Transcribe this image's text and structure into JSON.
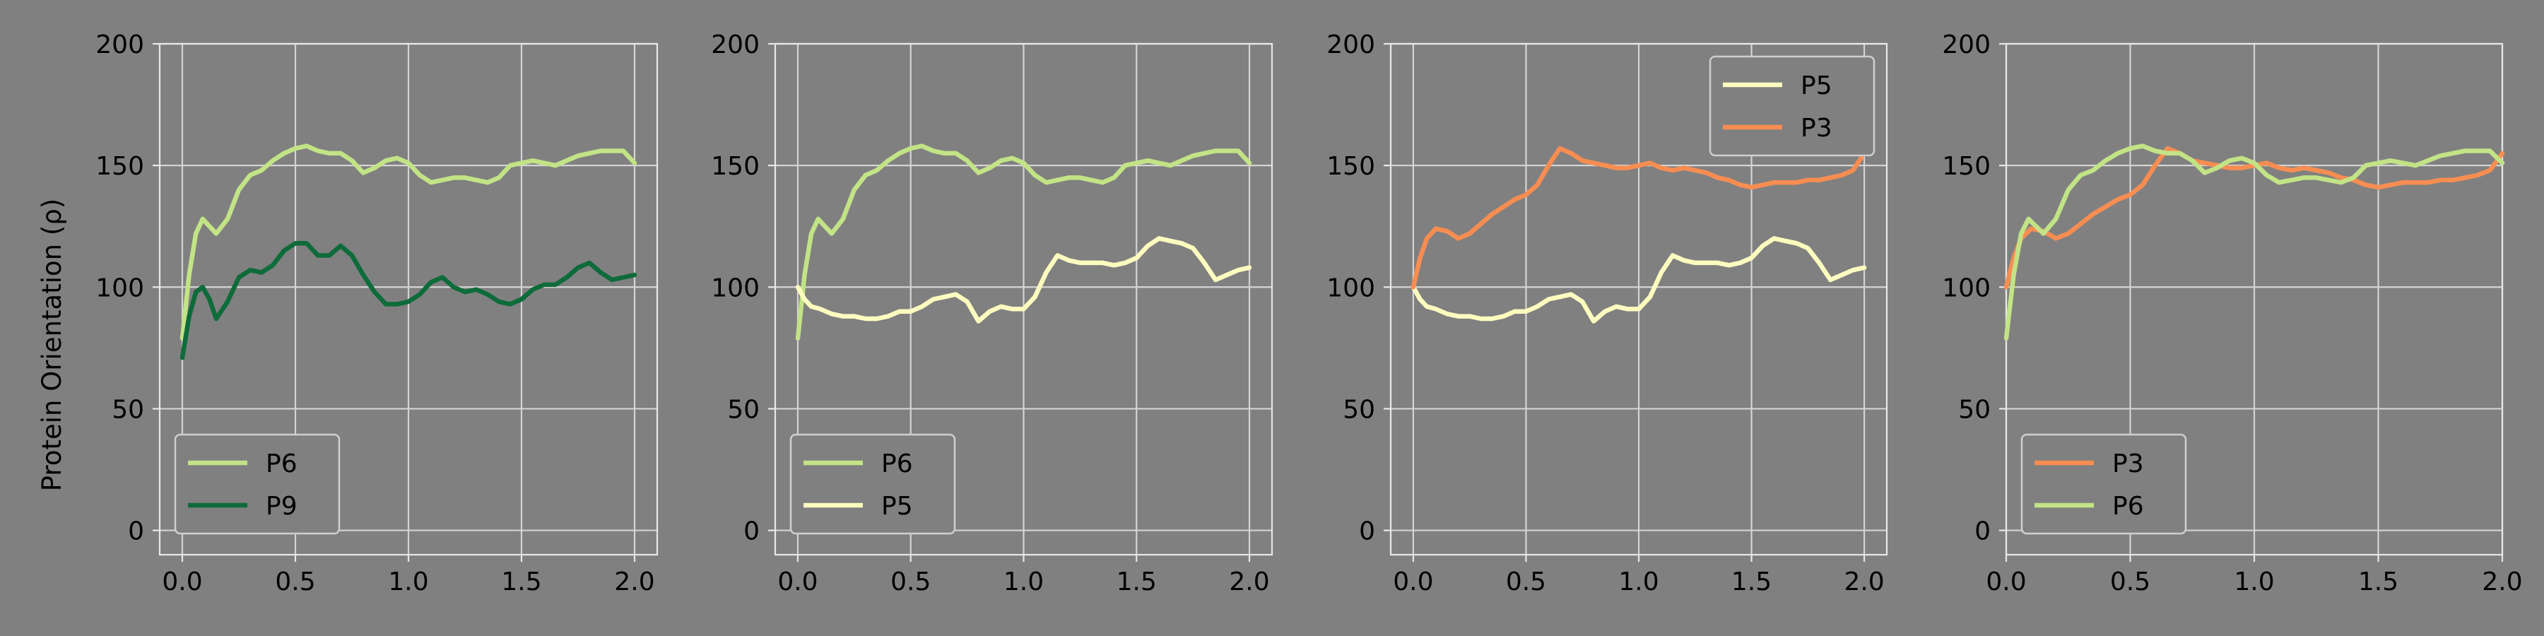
{
  "figure": {
    "ylabel": "Protein Orientation (ρ)",
    "colors": {
      "background": "#808080",
      "grid": "#d4d4d4",
      "axis": "#e8e8e8",
      "text": "#000000",
      "legend_face": "#808080",
      "legend_edge": "#cfcfcf"
    }
  },
  "chart_data": [
    {
      "type": "line",
      "xlim": [
        -0.1,
        2.1
      ],
      "ylim": [
        -10,
        200
      ],
      "xticks": [
        0.0,
        0.5,
        1.0,
        1.5,
        2.0
      ],
      "xtick_labels": [
        "0.0",
        "0.5",
        "1.0",
        "1.5",
        "2.0"
      ],
      "yticks": [
        0,
        50,
        100,
        150,
        200
      ],
      "ytick_labels": [
        "0",
        "50",
        "100",
        "150",
        "200"
      ],
      "grid": true,
      "legend": "lower-left",
      "series": [
        {
          "name": "P6",
          "color": "#c2e386",
          "x": [
            0,
            0.03,
            0.06,
            0.09,
            0.12,
            0.15,
            0.2,
            0.25,
            0.3,
            0.35,
            0.4,
            0.45,
            0.5,
            0.55,
            0.6,
            0.65,
            0.7,
            0.75,
            0.8,
            0.85,
            0.9,
            0.95,
            1.0,
            1.05,
            1.1,
            1.15,
            1.2,
            1.25,
            1.3,
            1.35,
            1.4,
            1.45,
            1.5,
            1.55,
            1.6,
            1.65,
            1.7,
            1.75,
            1.8,
            1.85,
            1.9,
            1.95,
            2.0
          ],
          "y": [
            79,
            105,
            122,
            128,
            125,
            122,
            128,
            140,
            146,
            148,
            152,
            155,
            157,
            158,
            156,
            155,
            155,
            152,
            147,
            149,
            152,
            153,
            151,
            146,
            143,
            144,
            145,
            145,
            144,
            143,
            145,
            150,
            151,
            152,
            151,
            150,
            152,
            154,
            155,
            156,
            156,
            156,
            151
          ]
        },
        {
          "name": "P9",
          "color": "#0e6b3a",
          "x": [
            0,
            0.03,
            0.06,
            0.09,
            0.12,
            0.15,
            0.2,
            0.25,
            0.3,
            0.35,
            0.4,
            0.45,
            0.5,
            0.55,
            0.6,
            0.65,
            0.7,
            0.75,
            0.8,
            0.85,
            0.9,
            0.95,
            1.0,
            1.05,
            1.1,
            1.15,
            1.2,
            1.25,
            1.3,
            1.35,
            1.4,
            1.45,
            1.5,
            1.55,
            1.6,
            1.65,
            1.7,
            1.75,
            1.8,
            1.85,
            1.9,
            1.95,
            2.0
          ],
          "y": [
            71,
            88,
            98,
            100,
            95,
            87,
            94,
            104,
            107,
            106,
            109,
            115,
            118,
            118,
            113,
            113,
            117,
            113,
            105,
            98,
            93,
            93,
            94,
            97,
            102,
            104,
            100,
            98,
            99,
            97,
            94,
            93,
            95,
            99,
            101,
            101,
            104,
            108,
            110,
            106,
            103,
            104,
            105
          ]
        }
      ]
    },
    {
      "type": "line",
      "xlim": [
        -0.1,
        2.1
      ],
      "ylim": [
        -10,
        200
      ],
      "xticks": [
        0.0,
        0.5,
        1.0,
        1.5,
        2.0
      ],
      "xtick_labels": [
        "0.0",
        "0.5",
        "1.0",
        "1.5",
        "2.0"
      ],
      "yticks": [
        0,
        50,
        100,
        150,
        200
      ],
      "ytick_labels": [
        "0",
        "50",
        "100",
        "150",
        "200"
      ],
      "grid": true,
      "legend": "lower-left",
      "series": [
        {
          "name": "P6",
          "color": "#c2e386",
          "x": [
            0,
            0.03,
            0.06,
            0.09,
            0.12,
            0.15,
            0.2,
            0.25,
            0.3,
            0.35,
            0.4,
            0.45,
            0.5,
            0.55,
            0.6,
            0.65,
            0.7,
            0.75,
            0.8,
            0.85,
            0.9,
            0.95,
            1.0,
            1.05,
            1.1,
            1.15,
            1.2,
            1.25,
            1.3,
            1.35,
            1.4,
            1.45,
            1.5,
            1.55,
            1.6,
            1.65,
            1.7,
            1.75,
            1.8,
            1.85,
            1.9,
            1.95,
            2.0
          ],
          "y": [
            79,
            105,
            122,
            128,
            125,
            122,
            128,
            140,
            146,
            148,
            152,
            155,
            157,
            158,
            156,
            155,
            155,
            152,
            147,
            149,
            152,
            153,
            151,
            146,
            143,
            144,
            145,
            145,
            144,
            143,
            145,
            150,
            151,
            152,
            151,
            150,
            152,
            154,
            155,
            156,
            156,
            156,
            151
          ]
        },
        {
          "name": "P5",
          "color": "#fdfcbf",
          "x": [
            0,
            0.03,
            0.06,
            0.1,
            0.15,
            0.2,
            0.25,
            0.3,
            0.35,
            0.4,
            0.45,
            0.5,
            0.55,
            0.6,
            0.65,
            0.7,
            0.75,
            0.8,
            0.85,
            0.9,
            0.95,
            1.0,
            1.05,
            1.1,
            1.15,
            1.2,
            1.25,
            1.3,
            1.35,
            1.4,
            1.45,
            1.5,
            1.55,
            1.6,
            1.65,
            1.7,
            1.75,
            1.8,
            1.85,
            1.9,
            1.95,
            2.0
          ],
          "y": [
            100,
            95,
            92,
            91,
            89,
            88,
            88,
            87,
            87,
            88,
            90,
            90,
            92,
            95,
            96,
            97,
            94,
            86,
            90,
            92,
            91,
            91,
            96,
            106,
            113,
            111,
            110,
            110,
            110,
            109,
            110,
            112,
            117,
            120,
            119,
            118,
            116,
            110,
            103,
            105,
            107,
            108
          ]
        }
      ]
    },
    {
      "type": "line",
      "xlim": [
        -0.1,
        2.1
      ],
      "ylim": [
        -10,
        200
      ],
      "xticks": [
        0.0,
        0.5,
        1.0,
        1.5,
        2.0
      ],
      "xtick_labels": [
        "0.0",
        "0.5",
        "1.0",
        "1.5",
        "2.0"
      ],
      "yticks": [
        0,
        50,
        100,
        150,
        200
      ],
      "ytick_labels": [
        "0",
        "50",
        "100",
        "150",
        "200"
      ],
      "grid": true,
      "legend": "upper-right",
      "series": [
        {
          "name": "P5",
          "color": "#fdfcbf",
          "x": [
            0,
            0.03,
            0.06,
            0.1,
            0.15,
            0.2,
            0.25,
            0.3,
            0.35,
            0.4,
            0.45,
            0.5,
            0.55,
            0.6,
            0.65,
            0.7,
            0.75,
            0.8,
            0.85,
            0.9,
            0.95,
            1.0,
            1.05,
            1.1,
            1.15,
            1.2,
            1.25,
            1.3,
            1.35,
            1.4,
            1.45,
            1.5,
            1.55,
            1.6,
            1.65,
            1.7,
            1.75,
            1.8,
            1.85,
            1.9,
            1.95,
            2.0
          ],
          "y": [
            100,
            95,
            92,
            91,
            89,
            88,
            88,
            87,
            87,
            88,
            90,
            90,
            92,
            95,
            96,
            97,
            94,
            86,
            90,
            92,
            91,
            91,
            96,
            106,
            113,
            111,
            110,
            110,
            110,
            109,
            110,
            112,
            117,
            120,
            119,
            118,
            116,
            110,
            103,
            105,
            107,
            108
          ]
        },
        {
          "name": "P3",
          "color": "#f88d52",
          "x": [
            0,
            0.03,
            0.06,
            0.1,
            0.15,
            0.2,
            0.25,
            0.3,
            0.35,
            0.4,
            0.45,
            0.5,
            0.55,
            0.6,
            0.65,
            0.7,
            0.75,
            0.8,
            0.85,
            0.9,
            0.95,
            1.0,
            1.05,
            1.1,
            1.15,
            1.2,
            1.25,
            1.3,
            1.35,
            1.4,
            1.45,
            1.5,
            1.55,
            1.6,
            1.65,
            1.7,
            1.75,
            1.8,
            1.85,
            1.9,
            1.95,
            2.0
          ],
          "y": [
            100,
            112,
            120,
            124,
            123,
            120,
            122,
            126,
            130,
            133,
            136,
            138,
            142,
            150,
            157,
            155,
            152,
            151,
            150,
            149,
            149,
            150,
            151,
            149,
            148,
            149,
            148,
            147,
            145,
            144,
            142,
            141,
            142,
            143,
            143,
            143,
            144,
            144,
            145,
            146,
            148,
            155
          ]
        }
      ]
    },
    {
      "type": "line",
      "xlim": [
        0.0,
        2.0
      ],
      "ylim": [
        -10,
        200
      ],
      "xticks": [
        0.0,
        0.5,
        1.0,
        1.5,
        2.0
      ],
      "xtick_labels": [
        "0.0",
        "0.5",
        "1.0",
        "1.5",
        "2.0"
      ],
      "yticks": [
        0,
        50,
        100,
        150,
        200
      ],
      "ytick_labels": [
        "0",
        "50",
        "100",
        "150",
        "200"
      ],
      "grid": true,
      "legend": "lower-left",
      "series": [
        {
          "name": "P3",
          "color": "#f88d52",
          "x": [
            0,
            0.03,
            0.06,
            0.1,
            0.15,
            0.2,
            0.25,
            0.3,
            0.35,
            0.4,
            0.45,
            0.5,
            0.55,
            0.6,
            0.65,
            0.7,
            0.75,
            0.8,
            0.85,
            0.9,
            0.95,
            1.0,
            1.05,
            1.1,
            1.15,
            1.2,
            1.25,
            1.3,
            1.35,
            1.4,
            1.45,
            1.5,
            1.55,
            1.6,
            1.65,
            1.7,
            1.75,
            1.8,
            1.85,
            1.9,
            1.95,
            2.0
          ],
          "y": [
            100,
            112,
            120,
            124,
            123,
            120,
            122,
            126,
            130,
            133,
            136,
            138,
            142,
            150,
            157,
            155,
            152,
            151,
            150,
            149,
            149,
            150,
            151,
            149,
            148,
            149,
            148,
            147,
            145,
            144,
            142,
            141,
            142,
            143,
            143,
            143,
            144,
            144,
            145,
            146,
            148,
            155
          ]
        },
        {
          "name": "P6",
          "color": "#c2e386",
          "x": [
            0,
            0.03,
            0.06,
            0.09,
            0.12,
            0.15,
            0.2,
            0.25,
            0.3,
            0.35,
            0.4,
            0.45,
            0.5,
            0.55,
            0.6,
            0.65,
            0.7,
            0.75,
            0.8,
            0.85,
            0.9,
            0.95,
            1.0,
            1.05,
            1.1,
            1.15,
            1.2,
            1.25,
            1.3,
            1.35,
            1.4,
            1.45,
            1.5,
            1.55,
            1.6,
            1.65,
            1.7,
            1.75,
            1.8,
            1.85,
            1.9,
            1.95,
            2.0
          ],
          "y": [
            79,
            105,
            122,
            128,
            125,
            122,
            128,
            140,
            146,
            148,
            152,
            155,
            157,
            158,
            156,
            155,
            155,
            152,
            147,
            149,
            152,
            153,
            151,
            146,
            143,
            144,
            145,
            145,
            144,
            143,
            145,
            150,
            151,
            152,
            151,
            150,
            152,
            154,
            155,
            156,
            156,
            156,
            151
          ]
        }
      ]
    }
  ]
}
